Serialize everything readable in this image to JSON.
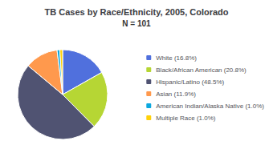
{
  "chart_data": {
    "type": "pie",
    "title": "TB Cases by Race/Ethnicity, 2005, Colorado",
    "subtitle": "N = 101",
    "categories": [
      "White (16.8%)",
      "Black/African American (20.8%)",
      "Hispanic/Latino (48.5%)",
      "Asian (11.9%)",
      "American Indian/Alaska Native (1.0%)",
      "Multiple Race (1.0%)"
    ],
    "values": [
      16.8,
      20.8,
      48.5,
      11.9,
      1.0,
      1.0
    ],
    "legend": "right"
  }
}
